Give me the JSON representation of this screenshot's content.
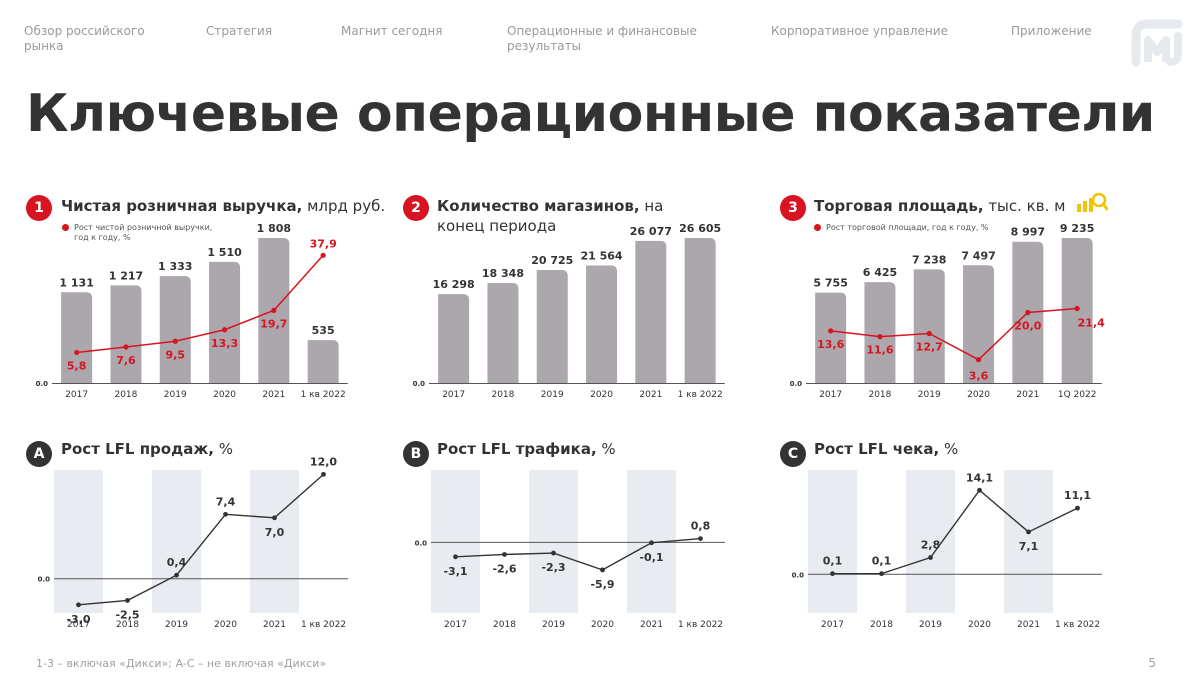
{
  "nav": [
    {
      "label": "Обзор российского\nрынка"
    },
    {
      "label": "Стратегия"
    },
    {
      "label": "Магнит сегодня"
    },
    {
      "label": "Операционные и финансовые\nрезультаты"
    },
    {
      "label": "Корпоративное управление"
    },
    {
      "label": "Приложение"
    }
  ],
  "page_title": "Ключевые операционные показатели",
  "footnote": "1-3 – включая «Дикси»; A-C – не включая «Дикси»",
  "page_number": "5",
  "colors": {
    "bar": "#aca6ad",
    "accent": "#d7141f",
    "dark": "#333333",
    "band": "#e8ecf0",
    "icon": "#f2c300"
  },
  "icons": {
    "logo": "magnit-logo-icon",
    "area": "magnifier-bars-icon"
  },
  "chart_data": [
    {
      "id": "retail-revenue",
      "type": "bar",
      "badge": "1",
      "title": "Чистая розничная выручка,",
      "unit": " млрд руб.",
      "legend": "Рост чистой розничной выручки, год к году, %",
      "zero_label": "0.0",
      "categories": [
        "2017",
        "2018",
        "2019",
        "2020",
        "2021",
        "1 кв 2022"
      ],
      "values": [
        1131,
        1217,
        1333,
        1510,
        1808,
        535
      ],
      "value_labels": [
        "1 131",
        "1 217",
        "1 333",
        "1 510",
        "1 808",
        "535"
      ],
      "ymax": 1808,
      "line": {
        "values": [
          5.8,
          7.6,
          9.5,
          13.3,
          19.7,
          37.9
        ],
        "labels": [
          "5,8",
          "7,6",
          "9,5",
          "13,3",
          "19,7",
          "37,9"
        ],
        "ymin": 0,
        "ymax": 38
      }
    },
    {
      "id": "store-count",
      "type": "bar",
      "badge": "2",
      "title": "Количество магазинов,",
      "unit": " на",
      "unit2": "конец периода",
      "zero_label": "0.0",
      "categories": [
        "2017",
        "2018",
        "2019",
        "2020",
        "2021",
        "1 кв 2022"
      ],
      "values": [
        16298,
        18348,
        20725,
        21564,
        26077,
        26605
      ],
      "value_labels": [
        "16 298",
        "18 348",
        "20 725",
        "21 564",
        "26 077",
        "26 605"
      ],
      "ymax": 26605
    },
    {
      "id": "selling-space",
      "type": "bar",
      "badge": "3",
      "title": "Торговая площадь,",
      "unit": " тыс. кв. м",
      "legend": "Рост торговой площади, год к году, %",
      "zero_label": "0.0",
      "categories": [
        "2017",
        "2018",
        "2019",
        "2020",
        "2021",
        "1Q 2022"
      ],
      "values": [
        5755,
        6425,
        7238,
        7497,
        8997,
        9235
      ],
      "value_labels": [
        "5 755",
        "6 425",
        "7 238",
        "7 497",
        "8 997",
        "9 235"
      ],
      "ymax": 9235,
      "line": {
        "values": [
          13.6,
          11.6,
          12.7,
          3.6,
          20.0,
          21.4
        ],
        "labels": [
          "13,6",
          "11,6",
          "12,7",
          "3,6",
          "20,0",
          "21,4"
        ],
        "ymin": 0,
        "ymax": 40
      }
    },
    {
      "id": "lfl-sales",
      "type": "line",
      "badge": "A",
      "title": "Рост LFL продаж,",
      "unit": " %",
      "zero_label": "0.0",
      "categories": [
        "2017",
        "2018",
        "2019",
        "2020",
        "2021",
        "1 кв 2022"
      ],
      "values": [
        -3.0,
        -2.5,
        0.4,
        7.4,
        7.0,
        12.0
      ],
      "labels": [
        "-3,0",
        "-2,5",
        "0,4",
        "7,4",
        "7,0",
        "12,0"
      ],
      "ylim": [
        -3.6,
        12.5
      ]
    },
    {
      "id": "lfl-traffic",
      "type": "line",
      "badge": "B",
      "title": "Рост LFL трафика,",
      "unit": " %",
      "zero_label": "0.0",
      "categories": [
        "2017",
        "2018",
        "2019",
        "2020",
        "2021",
        "1 кв 2022"
      ],
      "values": [
        -3.1,
        -2.6,
        -2.3,
        -5.9,
        -0.1,
        0.8
      ],
      "labels": [
        "-3,1",
        "-2,6",
        "-2,3",
        "-5,9",
        "-0,1",
        "0,8"
      ],
      "ylim": [
        -14.5,
        15.5
      ]
    },
    {
      "id": "lfl-ticket",
      "type": "line",
      "badge": "C",
      "title": "Рост LFL чека,",
      "unit": " %",
      "zero_label": "0.0",
      "categories": [
        "2017",
        "2018",
        "2019",
        "2020",
        "2021",
        "1 кв 2022"
      ],
      "values": [
        0.1,
        0.1,
        2.8,
        14.1,
        7.1,
        11.1
      ],
      "labels": [
        "0,1",
        "0,1",
        "2,8",
        "14,1",
        "7,1",
        "11,1"
      ],
      "ylim": [
        -6,
        17.5
      ]
    }
  ]
}
